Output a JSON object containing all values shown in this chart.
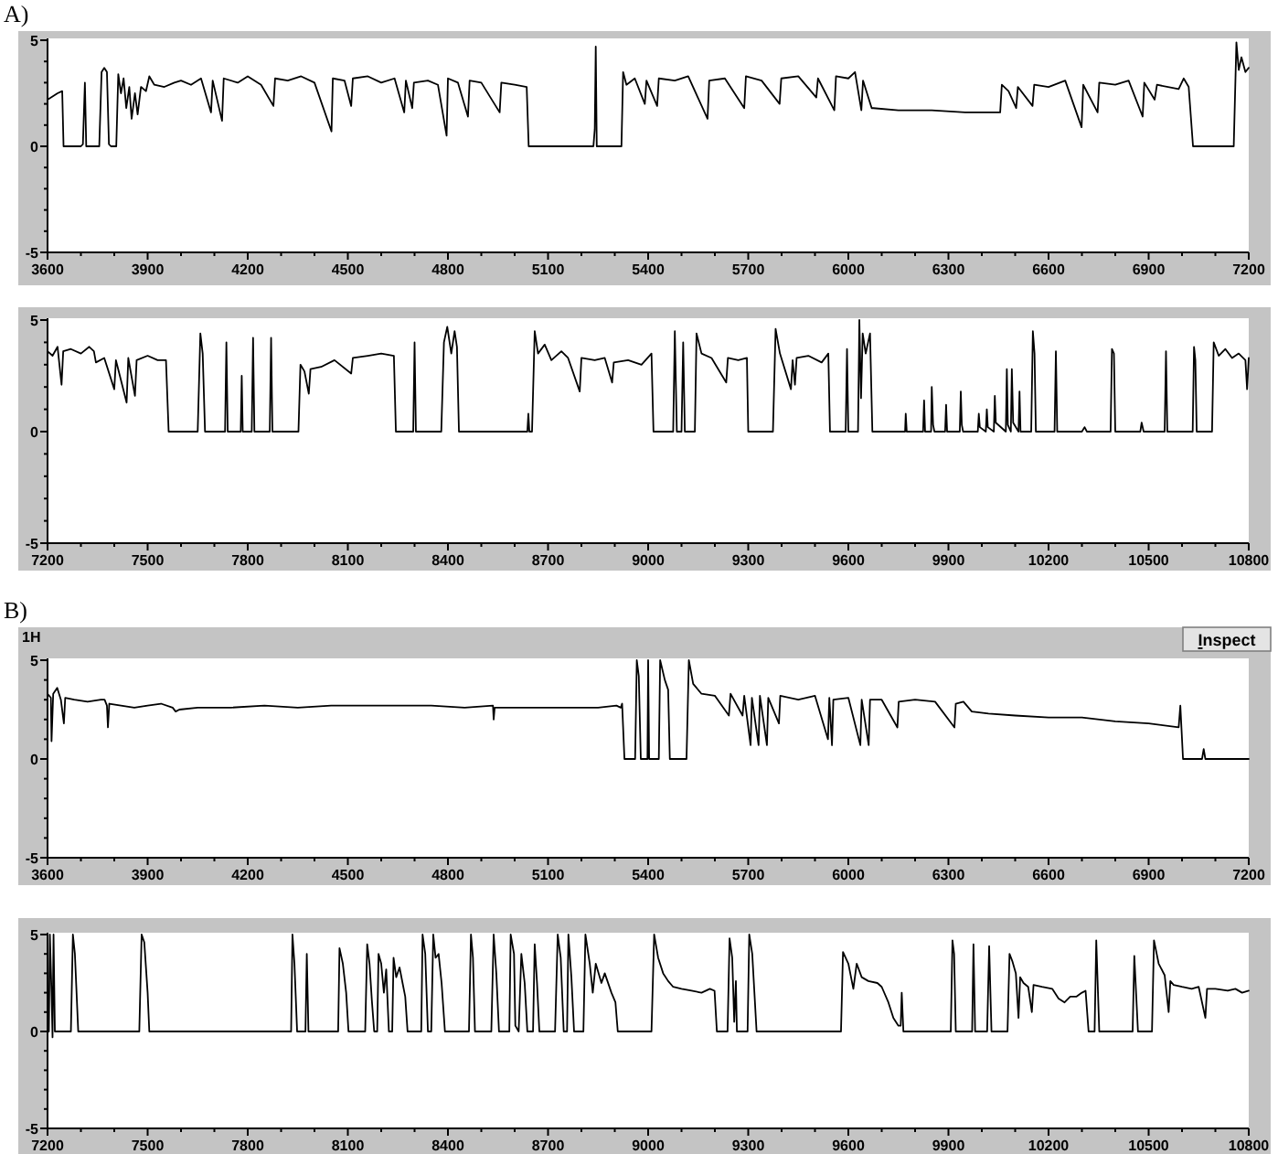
{
  "chart_data": [
    {
      "type": "line",
      "title": "A)",
      "xlim": [
        3600,
        7200
      ],
      "ylim": [
        -5,
        5
      ],
      "xticks": [
        3600,
        {
          "value": 3700,
          "label": null
        },
        {
          "value": 3800,
          "label": null
        },
        3900,
        {
          "value": 4000,
          "label": null
        },
        {
          "value": 4100,
          "label": null
        },
        4200,
        {
          "value": 4300,
          "label": null
        },
        {
          "value": 4400,
          "label": null
        },
        4500,
        {
          "value": 4600,
          "label": null
        },
        {
          "value": 4700,
          "label": null
        },
        4800,
        {
          "value": 4900,
          "label": null
        },
        {
          "value": 5000,
          "label": null
        },
        5100,
        {
          "value": 5200,
          "label": null
        },
        {
          "value": 5300,
          "label": null
        },
        5400,
        {
          "value": 5500,
          "label": null
        },
        {
          "value": 5600,
          "label": null
        },
        5700,
        {
          "value": 5800,
          "label": null
        },
        {
          "value": 5900,
          "label": null
        },
        6000,
        {
          "value": 6100,
          "label": null
        },
        {
          "value": 6200,
          "label": null
        },
        6300,
        {
          "value": 6400,
          "label": null
        },
        {
          "value": 6500,
          "label": null
        },
        6600,
        {
          "value": 6700,
          "label": null
        },
        {
          "value": 6800,
          "label": null
        },
        6900,
        {
          "value": 7000,
          "label": null
        },
        {
          "value": 7100,
          "label": null
        },
        7200
      ],
      "yticks": [
        -5,
        {
          "value": -4,
          "label": null
        },
        {
          "value": -3,
          "label": null
        },
        {
          "value": -2,
          "label": null
        },
        {
          "value": -1,
          "label": null
        },
        0,
        {
          "value": 1,
          "label": null
        },
        {
          "value": 2,
          "label": null
        },
        {
          "value": 3,
          "label": null
        },
        {
          "value": 4,
          "label": null
        },
        5
      ],
      "series": [
        {
          "color": "#000000",
          "x": [
            3600,
            3630,
            3644,
            3648,
            3700,
            3706,
            3712,
            3716,
            3755,
            3762,
            3770,
            3778,
            3784,
            3790,
            3806,
            3812,
            3820,
            3828,
            3836,
            3845,
            3852,
            3862,
            3870,
            3880,
            3895,
            3905,
            3920,
            3950,
            3980,
            4000,
            4030,
            4060,
            4090,
            4095,
            4123,
            4128,
            4170,
            4200,
            4240,
            4277,
            4282,
            4320,
            4360,
            4400,
            4451,
            4455,
            4490,
            4510,
            4515,
            4560,
            4600,
            4640,
            4669,
            4674,
            4693,
            4698,
            4740,
            4770,
            4796,
            4800,
            4830,
            4860,
            4865,
            4900,
            4955,
            4960,
            5000,
            5036,
            5042,
            5100,
            5200,
            5236,
            5240,
            5243,
            5246,
            5320,
            5325,
            5335,
            5360,
            5390,
            5395,
            5427,
            5432,
            5480,
            5520,
            5578,
            5583,
            5630,
            5688,
            5693,
            5740,
            5794,
            5799,
            5850,
            5904,
            5909,
            5958,
            5963,
            6000,
            6020,
            6039,
            6044,
            6070,
            6075,
            6150,
            6250,
            6350,
            6455,
            6460,
            6480,
            6503,
            6508,
            6552,
            6557,
            6600,
            6650,
            6699,
            6704,
            6747,
            6752,
            6800,
            6840,
            6882,
            6887,
            6918,
            6925,
            6990,
            7005,
            7020,
            7033,
            7155,
            7163,
            7170,
            7178,
            7190,
            7200
          ],
          "values": [
            2.2,
            2.5,
            2.6,
            0,
            0,
            0.1,
            3.0,
            0,
            0,
            3.5,
            3.7,
            3.5,
            0.1,
            0,
            0,
            3.4,
            2.5,
            3.2,
            1.8,
            2.8,
            1.3,
            2.5,
            1.5,
            2.8,
            2.6,
            3.3,
            2.9,
            2.8,
            3.0,
            3.1,
            2.9,
            3.2,
            1.6,
            3.1,
            1.2,
            3.2,
            3.0,
            3.3,
            2.9,
            1.9,
            3.2,
            3.1,
            3.3,
            3.0,
            0.7,
            3.2,
            3.1,
            1.9,
            3.2,
            3.3,
            3.0,
            3.2,
            1.6,
            3.1,
            1.8,
            3.0,
            3.1,
            2.9,
            0.5,
            3.2,
            3.0,
            1.4,
            3.1,
            3.0,
            1.6,
            3.0,
            2.9,
            2.8,
            0,
            0,
            0,
            0,
            0.8,
            4.7,
            0,
            0,
            3.5,
            2.9,
            3.2,
            2.0,
            3.1,
            1.9,
            3.2,
            3.1,
            3.3,
            1.3,
            3.1,
            3.2,
            1.8,
            3.3,
            3.1,
            2.0,
            3.2,
            3.3,
            2.3,
            3.2,
            1.7,
            3.3,
            3.2,
            3.5,
            1.7,
            3.1,
            1.8,
            1.8,
            1.7,
            1.7,
            1.6,
            1.6,
            2.9,
            2.6,
            1.8,
            2.8,
            1.9,
            2.9,
            2.8,
            3.1,
            0.9,
            2.9,
            1.6,
            3.0,
            2.9,
            3.1,
            1.4,
            3.0,
            2.2,
            2.9,
            2.7,
            3.2,
            2.8,
            0,
            0,
            4.9,
            3.6,
            4.2,
            3.5,
            3.7
          ]
        }
      ]
    },
    {
      "type": "line",
      "xlim": [
        7200,
        10800
      ],
      "ylim": [
        -5,
        5
      ],
      "xticks": [
        7200,
        {
          "value": 7300,
          "label": null
        },
        {
          "value": 7400,
          "label": null
        },
        7500,
        {
          "value": 7600,
          "label": null
        },
        {
          "value": 7700,
          "label": null
        },
        7800,
        {
          "value": 7900,
          "label": null
        },
        {
          "value": 8000,
          "label": null
        },
        8100,
        {
          "value": 8200,
          "label": null
        },
        {
          "value": 8300,
          "label": null
        },
        8400,
        {
          "value": 8500,
          "label": null
        },
        {
          "value": 8600,
          "label": null
        },
        8700,
        {
          "value": 8800,
          "label": null
        },
        {
          "value": 8900,
          "label": null
        },
        9000,
        {
          "value": 9100,
          "label": null
        },
        {
          "value": 9200,
          "label": null
        },
        9300,
        {
          "value": 9400,
          "label": null
        },
        {
          "value": 9500,
          "label": null
        },
        9600,
        {
          "value": 9700,
          "label": null
        },
        {
          "value": 9800,
          "label": null
        },
        9900,
        {
          "value": 10000,
          "label": null
        },
        {
          "value": 10100,
          "label": null
        },
        10200,
        {
          "value": 10300,
          "label": null
        },
        {
          "value": 10400,
          "label": null
        },
        10500,
        {
          "value": 10600,
          "label": null
        },
        {
          "value": 10700,
          "label": null
        },
        10800
      ],
      "yticks": [
        -5,
        {
          "value": -4,
          "label": null
        },
        {
          "value": -3,
          "label": null
        },
        {
          "value": -2,
          "label": null
        },
        {
          "value": -1,
          "label": null
        },
        0,
        {
          "value": 1,
          "label": null
        },
        {
          "value": 2,
          "label": null
        },
        {
          "value": 3,
          "label": null
        },
        {
          "value": 4,
          "label": null
        },
        5
      ],
      "series": [
        {
          "color": "#000000",
          "x": [
            7200,
            7215,
            7230,
            7242,
            7247,
            7270,
            7300,
            7325,
            7339,
            7345,
            7370,
            7400,
            7405,
            7437,
            7442,
            7462,
            7467,
            7500,
            7530,
            7555,
            7563,
            7650,
            7658,
            7665,
            7672,
            7732,
            7736,
            7740,
            7779,
            7782,
            7785,
            7812,
            7816,
            7820,
            7866,
            7870,
            7874,
            7952,
            7958,
            7970,
            7983,
            7988,
            8020,
            8060,
            8110,
            8115,
            8160,
            8200,
            8238,
            8244,
            8296,
            8300,
            8304,
            8380,
            8388,
            8398,
            8410,
            8420,
            8427,
            8433,
            8638,
            8641,
            8644,
            8652,
            8660,
            8670,
            8690,
            8710,
            8740,
            8760,
            8795,
            8800,
            8840,
            8870,
            8892,
            8897,
            8940,
            8980,
            9010,
            9016,
            9075,
            9080,
            9086,
            9100,
            9105,
            9110,
            9140,
            9145,
            9160,
            9190,
            9234,
            9239,
            9270,
            9296,
            9300,
            9374,
            9382,
            9395,
            9428,
            9433,
            9440,
            9445,
            9480,
            9520,
            9540,
            9545,
            9592,
            9596,
            9600,
            9629,
            9633,
            9638,
            9643,
            9652,
            9665,
            9672,
            9770,
            9772,
            9775,
            9824,
            9827,
            9830,
            9848,
            9850,
            9854,
            9858,
            9890,
            9893,
            9896,
            9934,
            9937,
            9940,
            9944,
            9988,
            9991,
            9994,
            10012,
            10015,
            10018,
            10036,
            10039,
            10042,
            10072,
            10075,
            10078,
            10087,
            10090,
            10094,
            10110,
            10113,
            10116,
            10148,
            10153,
            10158,
            10162,
            10218,
            10222,
            10226,
            10300,
            10308,
            10315,
            10386,
            10390,
            10396,
            10400,
            10475,
            10479,
            10485,
            10548,
            10552,
            10556,
            10632,
            10636,
            10640,
            10644,
            10690,
            10695,
            10710,
            10730,
            10750,
            10770,
            10790,
            10795,
            10800
          ],
          "values": [
            3.6,
            3.4,
            3.8,
            2.1,
            3.6,
            3.7,
            3.5,
            3.8,
            3.6,
            3.1,
            3.3,
            1.9,
            3.2,
            1.3,
            3.3,
            1.6,
            3.2,
            3.4,
            3.2,
            3.2,
            0,
            0,
            4.4,
            3.5,
            0,
            0,
            4.0,
            0,
            0,
            2.5,
            0,
            0,
            4.2,
            0,
            0,
            4.2,
            0,
            0,
            3.0,
            2.7,
            1.7,
            2.8,
            2.9,
            3.2,
            2.6,
            3.3,
            3.4,
            3.5,
            3.4,
            0,
            0,
            4.0,
            0,
            0,
            4.0,
            4.7,
            3.5,
            4.5,
            3.8,
            0,
            0,
            0.8,
            0,
            0,
            4.5,
            3.5,
            3.9,
            3.2,
            3.6,
            3.3,
            1.8,
            3.3,
            3.2,
            3.3,
            2.2,
            3.1,
            3.2,
            3.0,
            3.5,
            0,
            0,
            4.5,
            0,
            0,
            4.0,
            0,
            0,
            4.4,
            3.5,
            3.3,
            2.2,
            3.3,
            3.2,
            3.3,
            0,
            0,
            4.6,
            3.5,
            1.9,
            3.2,
            2.1,
            3.3,
            3.4,
            3.1,
            3.5,
            0,
            0,
            3.7,
            0,
            0,
            5.0,
            1.5,
            4.4,
            3.5,
            4.4,
            0,
            0,
            0.8,
            0,
            0,
            1.4,
            0,
            0,
            2.0,
            0.3,
            0,
            0,
            1.2,
            0,
            0,
            1.8,
            0.3,
            0,
            0,
            0.8,
            0.2,
            0,
            1.0,
            0.2,
            0,
            1.6,
            0.4,
            0,
            2.8,
            0.3,
            0,
            2.8,
            0.4,
            0,
            1.8,
            0,
            0,
            4.5,
            3.5,
            0,
            0,
            3.6,
            0,
            0,
            0.2,
            0,
            0,
            3.7,
            3.5,
            0,
            0,
            0.4,
            0,
            0,
            3.6,
            0,
            0,
            3.8,
            3.2,
            0,
            0,
            4.0,
            3.4,
            3.7,
            3.3,
            3.5,
            3.2,
            1.9,
            3.3
          ]
        }
      ]
    },
    {
      "type": "line",
      "title": "B)",
      "annotations": [
        "1H",
        "Inspect"
      ],
      "xlim": [
        3600,
        7200
      ],
      "ylim": [
        -5,
        5
      ],
      "xticks": [
        3600,
        {
          "value": 3700,
          "label": null
        },
        {
          "value": 3800,
          "label": null
        },
        3900,
        {
          "value": 4000,
          "label": null
        },
        {
          "value": 4100,
          "label": null
        },
        4200,
        {
          "value": 4300,
          "label": null
        },
        {
          "value": 4400,
          "label": null
        },
        4500,
        {
          "value": 4600,
          "label": null
        },
        {
          "value": 4700,
          "label": null
        },
        4800,
        {
          "value": 4900,
          "label": null
        },
        {
          "value": 5000,
          "label": null
        },
        5100,
        {
          "value": 5200,
          "label": null
        },
        {
          "value": 5300,
          "label": null
        },
        5400,
        {
          "value": 5500,
          "label": null
        },
        {
          "value": 5600,
          "label": null
        },
        5700,
        {
          "value": 5800,
          "label": null
        },
        {
          "value": 5900,
          "label": null
        },
        6000,
        {
          "value": 6100,
          "label": null
        },
        {
          "value": 6200,
          "label": null
        },
        6300,
        {
          "value": 6400,
          "label": null
        },
        {
          "value": 6500,
          "label": null
        },
        6600,
        {
          "value": 6700,
          "label": null
        },
        {
          "value": 6800,
          "label": null
        },
        6900,
        {
          "value": 7000,
          "label": null
        },
        {
          "value": 7100,
          "label": null
        },
        7200
      ],
      "yticks": [
        -5,
        {
          "value": -4,
          "label": null
        },
        {
          "value": -3,
          "label": null
        },
        {
          "value": -2,
          "label": null
        },
        {
          "value": -1,
          "label": null
        },
        0,
        {
          "value": 1,
          "label": null
        },
        {
          "value": 2,
          "label": null
        },
        {
          "value": 3,
          "label": null
        },
        {
          "value": 4,
          "label": null
        },
        5
      ],
      "series": [
        {
          "color": "#000000",
          "x": [
            3600,
            3610,
            3612,
            3617,
            3629,
            3640,
            3649,
            3653,
            3680,
            3720,
            3760,
            3771,
            3778,
            3781,
            3785,
            3820,
            3860,
            3900,
            3940,
            3975,
            3984,
            3995,
            4050,
            4150,
            4250,
            4350,
            4450,
            4550,
            4650,
            4750,
            4850,
            4935,
            4937,
            4940,
            5050,
            5150,
            5250,
            5305,
            5318,
            5322,
            5329,
            5361,
            5366,
            5372,
            5378,
            5398,
            5400,
            5403,
            5432,
            5436,
            5450,
            5460,
            5465,
            5515,
            5522,
            5535,
            5560,
            5600,
            5642,
            5647,
            5683,
            5688,
            5707,
            5711,
            5731,
            5735,
            5756,
            5760,
            5792,
            5796,
            5850,
            5900,
            5939,
            5943,
            5951,
            5955,
            6000,
            6036,
            6040,
            6061,
            6065,
            6100,
            6147,
            6151,
            6200,
            6260,
            6318,
            6322,
            6345,
            6370,
            6420,
            6500,
            6600,
            6700,
            6800,
            6900,
            6990,
            6995,
            7003,
            7060,
            7065,
            7070,
            7200
          ],
          "values": [
            3.3,
            3.1,
            0.9,
            3.3,
            3.6,
            3.0,
            1.8,
            3.1,
            3.0,
            2.9,
            3.0,
            3.0,
            2.7,
            1.6,
            2.8,
            2.7,
            2.6,
            2.7,
            2.8,
            2.6,
            2.4,
            2.5,
            2.6,
            2.6,
            2.7,
            2.6,
            2.7,
            2.7,
            2.7,
            2.7,
            2.6,
            2.7,
            2.0,
            2.6,
            2.6,
            2.6,
            2.6,
            2.7,
            2.6,
            2.8,
            0,
            0,
            5.0,
            4.2,
            0,
            0,
            5.0,
            0,
            0,
            5.0,
            4.0,
            3.5,
            0,
            0,
            5.0,
            3.8,
            3.3,
            3.2,
            2.2,
            3.3,
            2.2,
            3.2,
            0.7,
            3.1,
            0.7,
            3.2,
            0.7,
            3.1,
            1.8,
            3.2,
            3.0,
            3.2,
            1.0,
            3.1,
            0.7,
            3.0,
            3.1,
            0.7,
            3.0,
            0.7,
            3.0,
            3.0,
            1.6,
            2.9,
            3.0,
            2.9,
            1.6,
            2.8,
            2.9,
            2.4,
            2.3,
            2.2,
            2.1,
            2.1,
            1.9,
            1.8,
            1.6,
            2.7,
            0,
            0,
            0.5,
            0,
            0
          ]
        }
      ]
    },
    {
      "type": "line",
      "xlim": [
        7200,
        10800
      ],
      "ylim": [
        -5,
        5
      ],
      "xticks": [
        7200,
        {
          "value": 7300,
          "label": null
        },
        {
          "value": 7400,
          "label": null
        },
        7500,
        {
          "value": 7600,
          "label": null
        },
        {
          "value": 7700,
          "label": null
        },
        7800,
        {
          "value": 7900,
          "label": null
        },
        {
          "value": 8000,
          "label": null
        },
        8100,
        {
          "value": 8200,
          "label": null
        },
        {
          "value": 8300,
          "label": null
        },
        8400,
        {
          "value": 8500,
          "label": null
        },
        {
          "value": 8600,
          "label": null
        },
        8700,
        {
          "value": 8800,
          "label": null
        },
        {
          "value": 8900,
          "label": null
        },
        9000,
        {
          "value": 9100,
          "label": null
        },
        {
          "value": 9200,
          "label": null
        },
        9300,
        {
          "value": 9400,
          "label": null
        },
        {
          "value": 9500,
          "label": null
        },
        9600,
        {
          "value": 9700,
          "label": null
        },
        {
          "value": 9800,
          "label": null
        },
        9900,
        {
          "value": 10000,
          "label": null
        },
        {
          "value": 10100,
          "label": null
        },
        10200,
        {
          "value": 10300,
          "label": null
        },
        {
          "value": 10400,
          "label": null
        },
        10500,
        {
          "value": 10600,
          "label": null
        },
        {
          "value": 10700,
          "label": null
        },
        10800
      ],
      "yticks": [
        -5,
        {
          "value": -4,
          "label": null
        },
        {
          "value": -3,
          "label": null
        },
        {
          "value": -2,
          "label": null
        },
        {
          "value": -1,
          "label": null
        },
        0,
        {
          "value": 1,
          "label": null
        },
        {
          "value": 2,
          "label": null
        },
        {
          "value": 3,
          "label": null
        },
        {
          "value": 4,
          "label": null
        },
        5
      ],
      "series": [
        {
          "color": "#000000",
          "x": [
            7200,
            7204,
            7207,
            7212,
            7215,
            7218,
            7222,
            7270,
            7276,
            7282,
            7292,
            7475,
            7482,
            7490,
            7500,
            7505,
            7930,
            7934,
            7940,
            7948,
            7973,
            7977,
            7982,
            8071,
            8075,
            8085,
            8095,
            8102,
            8152,
            8158,
            8165,
            8172,
            8179,
            8188,
            8192,
            8200,
            8208,
            8215,
            8223,
            8233,
            8237,
            8245,
            8255,
            8264,
            8272,
            8279,
            8320,
            8324,
            8332,
            8340,
            8350,
            8356,
            8363,
            8372,
            8381,
            8391,
            8463,
            8469,
            8475,
            8481,
            8530,
            8537,
            8545,
            8553,
            8584,
            8588,
            8598,
            8602,
            8612,
            8620,
            8630,
            8638,
            8655,
            8660,
            8667,
            8674,
            8721,
            8729,
            8738,
            8747,
            8757,
            8761,
            8770,
            8778,
            8806,
            8812,
            8825,
            8834,
            8843,
            8860,
            8870,
            8890,
            8902,
            8909,
            9010,
            9018,
            9030,
            9045,
            9060,
            9075,
            9100,
            9130,
            9160,
            9185,
            9199,
            9206,
            9238,
            9244,
            9252,
            9258,
            9263,
            9266,
            9298,
            9303,
            9312,
            9325,
            9578,
            9584,
            9600,
            9615,
            9625,
            9640,
            9660,
            9687,
            9700,
            9720,
            9735,
            9750,
            9757,
            9760,
            9765,
            9907,
            9912,
            9917,
            9922,
            9971,
            9975,
            9980,
            10016,
            10022,
            10029,
            10077,
            10083,
            10092,
            10102,
            10110,
            10115,
            10125,
            10139,
            10150,
            10155,
            10180,
            10211,
            10230,
            10248,
            10265,
            10284,
            10300,
            10311,
            10320,
            10338,
            10343,
            10352,
            10452,
            10457,
            10468,
            10510,
            10516,
            10530,
            10548,
            10560,
            10565,
            10575,
            10600,
            10629,
            10650,
            10670,
            10675,
            10700,
            10737,
            10760,
            10780,
            10800
          ],
          "values": [
            0,
            0,
            5.0,
            2.0,
            -0.3,
            5.0,
            0,
            0,
            5.0,
            4.0,
            0,
            0,
            5.0,
            4.6,
            2.0,
            0,
            0,
            5.0,
            3.5,
            0,
            0,
            4.0,
            0,
            0,
            4.3,
            3.5,
            2.0,
            0,
            0,
            4.5,
            3.5,
            1.6,
            0,
            0,
            4.0,
            3.5,
            2.0,
            3.2,
            0,
            0,
            3.8,
            2.8,
            3.3,
            2.5,
            1.8,
            0,
            0,
            5.0,
            4.0,
            0,
            0,
            5.0,
            3.8,
            4.0,
            2.5,
            0,
            0,
            5.0,
            3.8,
            0,
            0,
            5.0,
            3.0,
            0,
            0,
            5.0,
            4.0,
            0.3,
            0,
            4.0,
            2.5,
            0,
            0,
            4.5,
            2.5,
            0,
            0,
            5.0,
            3.8,
            0,
            0,
            5.0,
            2.8,
            0,
            0,
            5.0,
            3.5,
            2.0,
            3.5,
            2.5,
            3.0,
            2.0,
            1.5,
            0,
            0,
            5.0,
            3.8,
            3.0,
            2.6,
            2.3,
            2.2,
            2.1,
            2.0,
            2.2,
            2.1,
            0,
            0,
            4.8,
            3.8,
            0.5,
            2.6,
            0,
            0,
            5.0,
            4.0,
            0,
            0,
            4.1,
            3.5,
            2.2,
            3.5,
            2.8,
            2.6,
            2.5,
            2.3,
            1.5,
            0.7,
            0.3,
            0.3,
            2.0,
            0,
            0,
            4.7,
            4.0,
            0,
            0,
            4.5,
            0,
            0,
            4.4,
            0,
            0,
            4.0,
            3.6,
            3.0,
            0.7,
            2.8,
            2.5,
            2.3,
            1.0,
            2.4,
            2.3,
            2.2,
            1.7,
            1.5,
            1.8,
            1.8,
            2.0,
            2.1,
            0,
            0,
            4.7,
            0,
            0,
            3.9,
            0,
            0,
            4.7,
            3.5,
            2.9,
            1.0,
            2.6,
            2.4,
            2.3,
            2.2,
            2.3,
            0.7,
            2.2,
            2.2,
            2.1,
            2.2,
            2.0,
            2.1
          ]
        }
      ]
    }
  ]
}
